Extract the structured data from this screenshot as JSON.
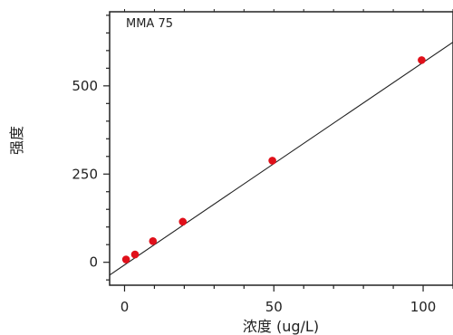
{
  "chart_data": {
    "type": "scatter",
    "annotation": "MMA 75",
    "xlabel": "浓度 (ug/L)",
    "ylabel": "强度",
    "xlim": [
      -5,
      110
    ],
    "ylim": [
      -65,
      710
    ],
    "x_ticks": [
      0,
      50,
      100
    ],
    "y_ticks": [
      0,
      250,
      500
    ],
    "grid": false,
    "legend": "none",
    "series": [
      {
        "x": [
          0.5,
          3.5,
          9.5,
          19.5,
          49.5,
          99.5
        ],
        "y": [
          8,
          22,
          60,
          115,
          288,
          573
        ],
        "color": "#e0101a"
      }
    ],
    "fit": {
      "slope": 5.74,
      "intercept": -7.5,
      "color": "#222222"
    }
  }
}
